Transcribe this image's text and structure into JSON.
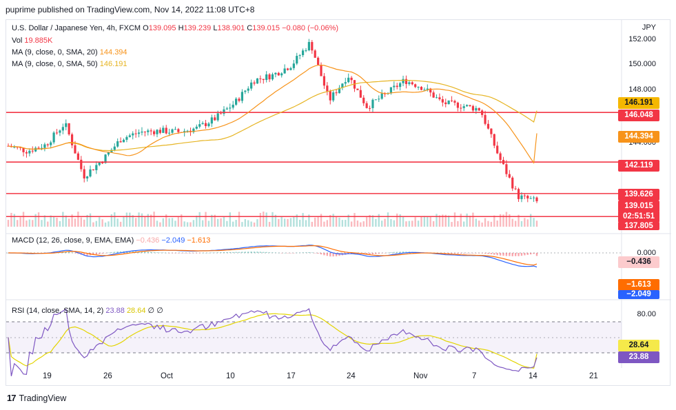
{
  "header": {
    "text": "puprime published on TradingView.com, Nov 14, 2022 11:08 UTC+8"
  },
  "legend": {
    "symbol": "U.S. Dollar / Japanese Yen, 4h, FXCM",
    "o_label": "O",
    "o": "139.095",
    "h_label": "H",
    "h": "139.239",
    "l_label": "L",
    "l": "138.901",
    "c_label": "C",
    "c": "139.015",
    "change": "−0.080 (−0.06%)",
    "vol_label": "Vol",
    "vol": "19.885K",
    "ma20_label": "MA (9, close, 0, SMA, 20)",
    "ma20": "144.394",
    "ma50_label": "MA (9, close, 0, SMA, 50)",
    "ma50": "146.191",
    "macd_label": "MACD (12, 26, close, 9, EMA, EMA)",
    "macd_hist": "−0.436",
    "macd_line": "−2.049",
    "macd_signal": "−1.613",
    "rsi_label": "RSI (14, close, SMA, 14, 2)",
    "rsi": "23.88",
    "rsi_sma": "28.64",
    "rsi_x1": "∅",
    "rsi_x2": "∅"
  },
  "currency": "JPY",
  "price_axis": [
    "152.000",
    "150.000",
    "148.000",
    "144.000"
  ],
  "price_tags": [
    {
      "label": "146.191",
      "color": "#f5b700",
      "text_color": "#131722"
    },
    {
      "label": "146.048",
      "color": "#f23645",
      "text_color": "#ffffff"
    },
    {
      "label": "144.394",
      "color": "#f7931a",
      "text_color": "#ffffff"
    },
    {
      "label": "142.119",
      "color": "#f23645",
      "text_color": "#ffffff"
    },
    {
      "label": "139.626",
      "color": "#f23645",
      "text_color": "#ffffff"
    },
    {
      "label": "139.015",
      "color": "#f23645",
      "text_color": "#ffffff"
    },
    {
      "label": "02:51:51",
      "color": "#f23645",
      "text_color": "#ffffff"
    },
    {
      "label": "137.805",
      "color": "#f23645",
      "text_color": "#ffffff"
    }
  ],
  "macd_axis": {
    "zero": "0.000"
  },
  "macd_tags": [
    {
      "label": "−0.436",
      "color": "#fccbcd",
      "text_color": "#131722"
    },
    {
      "label": "−1.613",
      "color": "#ff6d00",
      "text_color": "#ffffff"
    },
    {
      "label": "−2.049",
      "color": "#2962ff",
      "text_color": "#ffffff"
    }
  ],
  "rsi_axis": {
    "top": "80.00"
  },
  "rsi_tags": [
    {
      "label": "28.64",
      "color": "#f5e94a",
      "text_color": "#131722"
    },
    {
      "label": "23.88",
      "color": "#7e57c2",
      "text_color": "#ffffff"
    }
  ],
  "x_labels": [
    "19",
    "26",
    "Oct",
    "10",
    "17",
    "24",
    "Nov",
    "7",
    "14",
    "21"
  ],
  "footer": {
    "brand": "TradingView",
    "logo": "17"
  },
  "colors": {
    "up": "#26a69a",
    "down": "#f23645",
    "ma20": "#f7931a",
    "ma50": "#e6b422",
    "level": "#f23645",
    "macd": "#2962ff",
    "signal": "#ff6d00",
    "rsi": "#7e57c2",
    "rsi_ma": "#e3d400"
  },
  "chart_data": {
    "type": "candlestick",
    "symbol": "USDJPY",
    "timeframe": "4h",
    "y_range": [
      137.0,
      152.5
    ],
    "horizontal_levels": [
      146.048,
      142.119,
      139.626,
      137.805
    ],
    "close_path": [
      {
        "x": "Sep 15",
        "y": 143.4
      },
      {
        "x": "Sep 17",
        "y": 143.0
      },
      {
        "x": "Sep 20",
        "y": 143.5
      },
      {
        "x": "Sep 22",
        "y": 145.2
      },
      {
        "x": "Sep 22b",
        "y": 141.0
      },
      {
        "x": "Sep 23",
        "y": 142.3
      },
      {
        "x": "Sep 26",
        "y": 144.0
      },
      {
        "x": "Sep 28",
        "y": 144.5
      },
      {
        "x": "Sep 30",
        "y": 144.6
      },
      {
        "x": "Oct 4",
        "y": 144.5
      },
      {
        "x": "Oct 6",
        "y": 144.8
      },
      {
        "x": "Oct 10",
        "y": 145.6
      },
      {
        "x": "Oct 12",
        "y": 146.8
      },
      {
        "x": "Oct 14",
        "y": 148.6
      },
      {
        "x": "Oct 17",
        "y": 149.0
      },
      {
        "x": "Oct 19",
        "y": 149.8
      },
      {
        "x": "Oct 21",
        "y": 151.6
      },
      {
        "x": "Oct 21b",
        "y": 147.0
      },
      {
        "x": "Oct 24",
        "y": 149.0
      },
      {
        "x": "Oct 26",
        "y": 146.5
      },
      {
        "x": "Oct 28",
        "y": 147.5
      },
      {
        "x": "Oct 31",
        "y": 148.6
      },
      {
        "x": "Nov 2",
        "y": 148.0
      },
      {
        "x": "Nov 4",
        "y": 146.8
      },
      {
        "x": "Nov 7",
        "y": 146.6
      },
      {
        "x": "Nov 9",
        "y": 146.3
      },
      {
        "x": "Nov 10",
        "y": 142.5
      },
      {
        "x": "Nov 11",
        "y": 139.4
      },
      {
        "x": "Nov 14",
        "y": 139.015
      }
    ],
    "ma20_last": 144.394,
    "ma50_last": 146.191,
    "last_close": 139.015,
    "macd": {
      "line": -2.049,
      "signal": -1.613,
      "histogram": -0.436
    },
    "rsi": {
      "value": 23.88,
      "sma": 28.64,
      "upper": 70,
      "lower": 30
    }
  }
}
